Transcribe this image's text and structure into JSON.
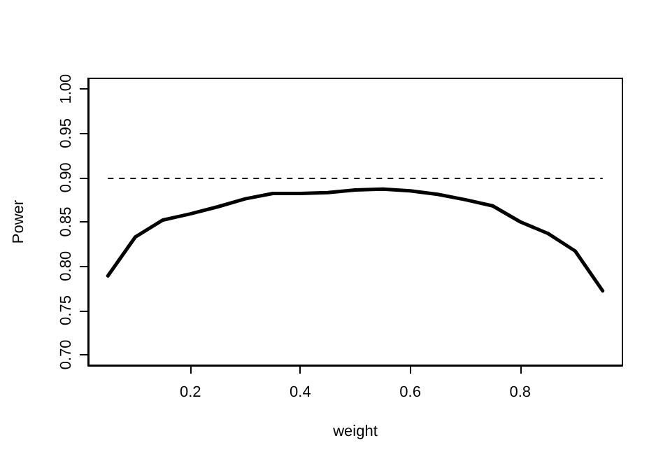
{
  "chart_data": {
    "type": "line",
    "xlabel": "weight",
    "ylabel": "Power",
    "x": [
      0.05,
      0.1,
      0.15,
      0.2,
      0.25,
      0.3,
      0.35,
      0.4,
      0.45,
      0.5,
      0.55,
      0.6,
      0.65,
      0.7,
      0.75,
      0.8,
      0.85,
      0.9,
      0.95
    ],
    "series": [
      {
        "color": "#000000",
        "values": [
          0.789,
          0.833,
          0.852,
          0.859,
          0.867,
          0.876,
          0.882,
          0.882,
          0.883,
          0.886,
          0.887,
          0.885,
          0.881,
          0.875,
          0.868,
          0.85,
          0.837,
          0.817,
          0.772
        ]
      }
    ],
    "xlim": [
      0.014,
      0.986
    ],
    "xticks": [
      0.2,
      0.4,
      0.6,
      0.8
    ],
    "ylim": [
      0.688,
      1.012
    ],
    "yticks": [
      {
        "value": 0.7,
        "label": "0.70"
      },
      {
        "value": 0.75,
        "label": "0.75"
      },
      {
        "value": 0.8,
        "label": "0.80"
      },
      {
        "value": 0.85,
        "label": "0.85"
      },
      {
        "value": 0.9,
        "label": "0.90"
      },
      {
        "value": 0.95,
        "label": "0.95"
      },
      {
        "value": 1,
        "label": "1.00"
      }
    ],
    "ref_lines": [
      {
        "axis": "y",
        "value": 0.9,
        "line_style": "dashed",
        "color": "#000000"
      }
    ],
    "grid": false,
    "marker": "none",
    "line_style": "solid"
  }
}
